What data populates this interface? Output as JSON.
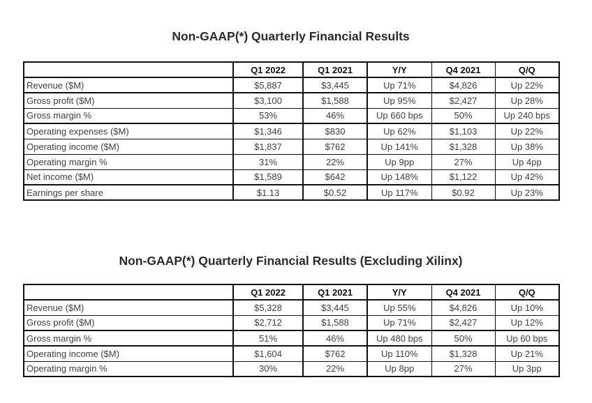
{
  "colors": {
    "background": "#ffffff",
    "border": "#111111",
    "title_text": "#2b2b2b",
    "header_text": "#111111",
    "data_text": "#404040"
  },
  "chart_data": [
    {
      "type": "table",
      "title": "Non-GAAP(*) Quarterly Financial Results",
      "columns": [
        "",
        "Q1 2022",
        "Q1 2021",
        "Y/Y",
        "Q4 2021",
        "Q/Q"
      ],
      "rows": [
        {
          "label": "Revenue ($M)",
          "values": [
            "$5,887",
            "$3,445",
            "Up 71%",
            "$4,826",
            "Up 22%"
          ],
          "thick_bottom": true
        },
        {
          "label": "Gross profit ($M)",
          "values": [
            "$3,100",
            "$1,588",
            "Up 95%",
            "$2,427",
            "Up 28%"
          ],
          "thick_bottom": false
        },
        {
          "label": "Gross margin %",
          "values": [
            "53%",
            "46%",
            "Up 660 bps",
            "50%",
            "Up 240 bps"
          ],
          "thick_bottom": true
        },
        {
          "label": "Operating expenses ($M)",
          "values": [
            "$1,346",
            "$830",
            "Up 62%",
            "$1,103",
            "Up 22%"
          ],
          "thick_bottom": false
        },
        {
          "label": "Operating income ($M)",
          "values": [
            "$1,837",
            "$762",
            "Up 141%",
            "$1,328",
            "Up 38%"
          ],
          "thick_bottom": false
        },
        {
          "label": "Operating margin %",
          "values": [
            "31%",
            "22%",
            "Up 9pp",
            "27%",
            "Up 4pp"
          ],
          "thick_bottom": false
        },
        {
          "label": "Net income ($M)",
          "values": [
            "$1,589",
            "$642",
            "Up 148%",
            "$1,122",
            "Up 42%"
          ],
          "thick_bottom": true
        },
        {
          "label": "Earnings per share",
          "values": [
            "$1.13",
            "$0.52",
            "Up 117%",
            "$0.92",
            "Up 23%"
          ],
          "thick_bottom": false
        }
      ]
    },
    {
      "type": "table",
      "title": "Non-GAAP(*) Quarterly Financial Results (Excluding Xilinx)",
      "columns": [
        "",
        "Q1 2022",
        "Q1 2021",
        "Y/Y",
        "Q4 2021",
        "Q/Q"
      ],
      "rows": [
        {
          "label": "Revenue ($M)",
          "values": [
            "$5,328",
            "$3,445",
            "Up 55%",
            "$4,826",
            "Up 10%"
          ],
          "thick_bottom": false
        },
        {
          "label": "Gross profit ($M)",
          "values": [
            "$2,712",
            "$1,588",
            "Up 71%",
            "$2,427",
            "Up 12%"
          ],
          "thick_bottom": true
        },
        {
          "label": "Gross margin %",
          "values": [
            "51%",
            "46%",
            "Up 480 bps",
            "50%",
            "Up 60 bps"
          ],
          "thick_bottom": true
        },
        {
          "label": "Operating income ($M)",
          "values": [
            "$1,604",
            "$762",
            "Up 110%",
            "$1,328",
            "Up 21%"
          ],
          "thick_bottom": false
        },
        {
          "label": "Operating margin %",
          "values": [
            "30%",
            "22%",
            "Up 8pp",
            "27%",
            "Up 3pp"
          ],
          "thick_bottom": false
        }
      ]
    }
  ]
}
